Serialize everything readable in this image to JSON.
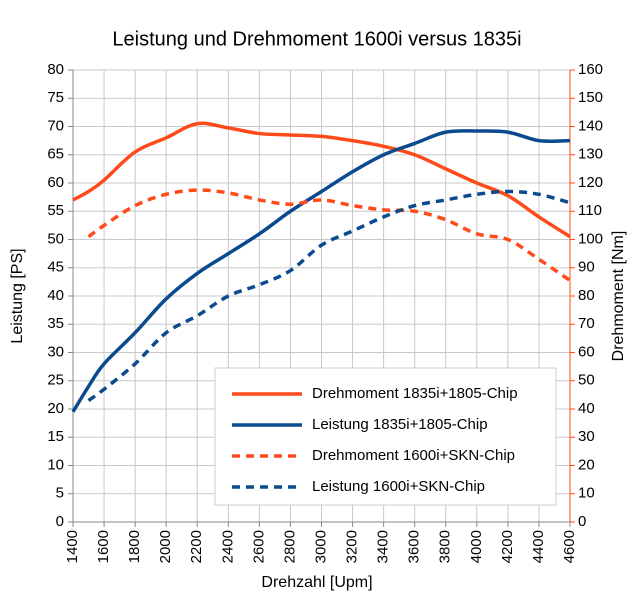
{
  "chart_data": {
    "type": "line",
    "title": "Leistung und Drehmoment 1600i versus 1835i",
    "x_label": "Drehzahl [Upm]",
    "y_label": "Leistung [PS]",
    "y2_label": "Drehmoment [Nm]",
    "x": [
      1400,
      1500,
      1600,
      1800,
      2000,
      2200,
      2400,
      2600,
      2800,
      3000,
      3200,
      3400,
      3600,
      3800,
      4000,
      4200,
      4400,
      4600
    ],
    "xlim": [
      1400,
      4600
    ],
    "xticks": [
      1400,
      1600,
      1800,
      2000,
      2200,
      2400,
      2600,
      2800,
      3000,
      3200,
      3400,
      3600,
      3800,
      4000,
      4200,
      4400,
      4600
    ],
    "ylim": [
      0,
      80
    ],
    "yticks": [
      0,
      5,
      10,
      15,
      20,
      25,
      30,
      35,
      40,
      45,
      50,
      55,
      60,
      65,
      70,
      75,
      80
    ],
    "y2lim": [
      0,
      160
    ],
    "y2ticks": [
      0,
      10,
      20,
      30,
      40,
      50,
      60,
      70,
      80,
      90,
      100,
      110,
      120,
      130,
      140,
      150,
      160
    ],
    "grid": true,
    "left_axis_color": "#17375e",
    "right_axis_color": "#ff4b19",
    "series": [
      {
        "name": "Drehmoment 1835i+1805-Chip",
        "color": "#ff4b19",
        "dashed": false,
        "axis": "y2",
        "values": [
          114,
          117,
          121,
          131,
          136,
          141,
          139.5,
          137.5,
          137,
          136.5,
          135,
          133,
          130,
          125,
          120,
          115.5,
          108,
          101
        ]
      },
      {
        "name": "Leistung 1835i+1805-Chip",
        "color": "#0b4a8f",
        "dashed": false,
        "axis": "y",
        "values": [
          19.5,
          24,
          28,
          33.5,
          39.5,
          44,
          47.5,
          51,
          55,
          58.5,
          62,
          65,
          67,
          69,
          69.2,
          69,
          67.5,
          67.5
        ]
      },
      {
        "name": "Drehmoment 1600i+SKN-Chip",
        "color": "#ff4b19",
        "dashed": true,
        "axis": "y2",
        "values": [
          null,
          101,
          105,
          112,
          116,
          117.5,
          116.5,
          114,
          112.5,
          114,
          112,
          110.5,
          110,
          107,
          102,
          100,
          93,
          85.5
        ]
      },
      {
        "name": "Leistung 1600i+SKN-Chip",
        "color": "#0b4a8f",
        "dashed": true,
        "axis": "y",
        "values": [
          null,
          21.5,
          23.5,
          28,
          33.5,
          36.5,
          40,
          42,
          44.5,
          49,
          51.5,
          54,
          56,
          57,
          58,
          58.5,
          58,
          56.5
        ]
      }
    ]
  }
}
